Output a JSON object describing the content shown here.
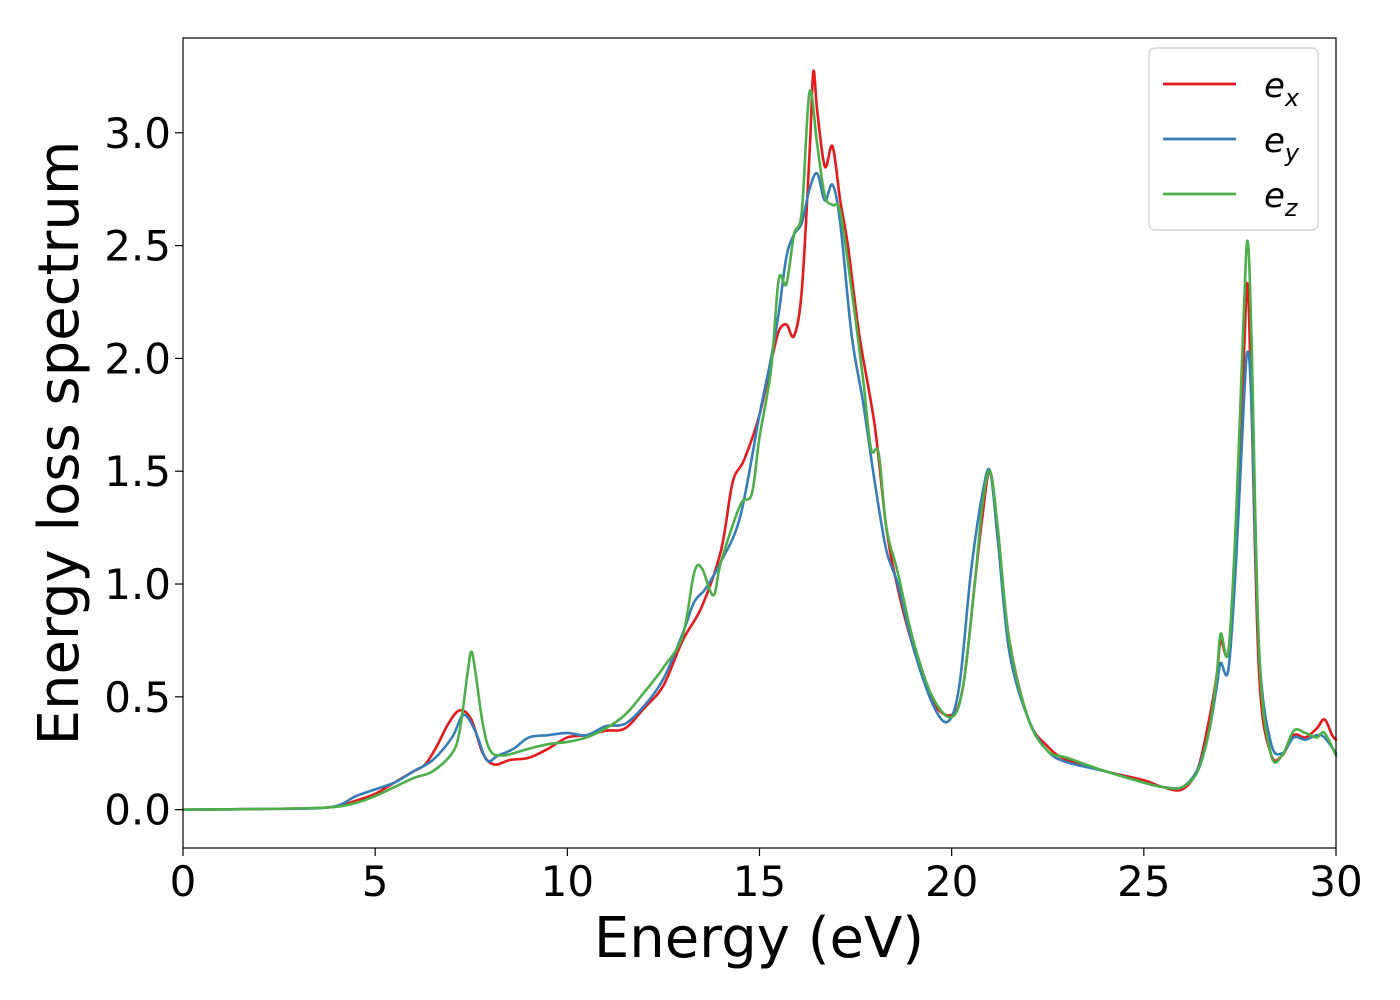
{
  "chart_data": {
    "type": "line",
    "title": "",
    "xlabel": "Energy (eV)",
    "ylabel": "Energy loss spectrum",
    "xlim": [
      0,
      30
    ],
    "ylim": [
      -0.17,
      3.42
    ],
    "xticks": [
      0,
      5,
      10,
      15,
      20,
      25,
      30
    ],
    "xtick_labels": [
      "0",
      "5",
      "10",
      "15",
      "20",
      "25",
      "30"
    ],
    "yticks": [
      0.0,
      0.5,
      1.0,
      1.5,
      2.0,
      2.5,
      3.0
    ],
    "ytick_labels": [
      "0.0",
      "0.5",
      "1.0",
      "1.5",
      "2.0",
      "2.5",
      "3.0"
    ],
    "grid": false,
    "legend_position": "top-right",
    "series": [
      {
        "name": "e_x",
        "legend_base": "e",
        "legend_sub": "x",
        "color": "#e41a1c",
        "x": [
          0,
          2,
          3.8,
          4.5,
          5.0,
          5.5,
          6.0,
          6.3,
          6.6,
          6.9,
          7.2,
          7.5,
          7.8,
          8.1,
          8.5,
          9.0,
          9.5,
          10.0,
          10.5,
          11.0,
          11.5,
          12.0,
          12.5,
          13.0,
          13.5,
          14.0,
          14.3,
          14.6,
          15.0,
          15.3,
          15.5,
          15.7,
          15.9,
          16.1,
          16.3,
          16.4,
          16.5,
          16.7,
          16.9,
          17.1,
          17.3,
          17.6,
          18.0,
          18.3,
          18.6,
          19.0,
          19.5,
          20.0,
          20.3,
          20.6,
          20.8,
          21.0,
          21.2,
          21.5,
          22.0,
          22.5,
          23.0,
          24.0,
          25.0,
          25.5,
          26.0,
          26.4,
          26.7,
          26.9,
          27.0,
          27.2,
          27.4,
          27.6,
          27.7,
          27.8,
          28.0,
          28.3,
          28.6,
          28.9,
          29.2,
          29.5,
          29.7,
          29.9,
          30.0
        ],
        "y": [
          0.0,
          0.003,
          0.01,
          0.04,
          0.07,
          0.12,
          0.17,
          0.2,
          0.28,
          0.38,
          0.44,
          0.4,
          0.25,
          0.2,
          0.22,
          0.23,
          0.27,
          0.32,
          0.33,
          0.35,
          0.36,
          0.45,
          0.55,
          0.75,
          0.9,
          1.15,
          1.45,
          1.55,
          1.75,
          1.98,
          2.12,
          2.15,
          2.1,
          2.3,
          2.9,
          3.27,
          3.1,
          2.85,
          2.94,
          2.7,
          2.5,
          2.1,
          1.7,
          1.25,
          0.98,
          0.72,
          0.48,
          0.42,
          0.55,
          1.0,
          1.3,
          1.5,
          1.2,
          0.75,
          0.4,
          0.28,
          0.22,
          0.17,
          0.13,
          0.1,
          0.09,
          0.18,
          0.4,
          0.6,
          0.75,
          0.7,
          1.2,
          2.0,
          2.33,
          1.8,
          0.6,
          0.25,
          0.24,
          0.33,
          0.32,
          0.36,
          0.4,
          0.33,
          0.31
        ]
      },
      {
        "name": "e_y",
        "legend_base": "e",
        "legend_sub": "y",
        "color": "#377eb8",
        "x": [
          0,
          2,
          3.8,
          4.5,
          5.0,
          5.5,
          6.0,
          6.5,
          7.0,
          7.3,
          7.6,
          7.9,
          8.2,
          8.6,
          9.0,
          9.5,
          10.0,
          10.5,
          11.0,
          11.5,
          12.0,
          12.5,
          13.0,
          13.3,
          13.6,
          14.0,
          14.5,
          15.0,
          15.3,
          15.5,
          15.7,
          15.9,
          16.1,
          16.3,
          16.5,
          16.7,
          16.9,
          17.1,
          17.4,
          17.7,
          18.0,
          18.3,
          18.6,
          19.0,
          19.5,
          19.9,
          20.2,
          20.5,
          20.8,
          21.0,
          21.2,
          21.5,
          22.0,
          22.5,
          23.0,
          24.0,
          25.0,
          25.5,
          26.0,
          26.4,
          26.7,
          26.9,
          27.0,
          27.2,
          27.4,
          27.6,
          27.7,
          27.8,
          28.0,
          28.3,
          28.6,
          28.9,
          29.2,
          29.5,
          29.7,
          30.0
        ],
        "y": [
          0.0,
          0.003,
          0.01,
          0.06,
          0.09,
          0.12,
          0.17,
          0.22,
          0.32,
          0.42,
          0.35,
          0.22,
          0.24,
          0.27,
          0.32,
          0.33,
          0.34,
          0.33,
          0.37,
          0.38,
          0.46,
          0.58,
          0.78,
          0.92,
          0.98,
          1.1,
          1.3,
          1.75,
          2.0,
          2.2,
          2.45,
          2.55,
          2.6,
          2.75,
          2.82,
          2.7,
          2.77,
          2.6,
          2.1,
          1.8,
          1.45,
          1.15,
          1.0,
          0.72,
          0.47,
          0.39,
          0.55,
          1.05,
          1.4,
          1.5,
          1.2,
          0.7,
          0.4,
          0.26,
          0.21,
          0.17,
          0.12,
          0.1,
          0.1,
          0.18,
          0.35,
          0.55,
          0.65,
          0.62,
          1.1,
          1.8,
          2.03,
          1.8,
          0.7,
          0.3,
          0.25,
          0.32,
          0.31,
          0.33,
          0.32,
          0.25
        ]
      },
      {
        "name": "e_z",
        "legend_base": "e",
        "legend_sub": "z",
        "color": "#4daf4a",
        "x": [
          0,
          2,
          3.8,
          4.5,
          5.0,
          5.5,
          6.0,
          6.5,
          7.0,
          7.2,
          7.4,
          7.5,
          7.6,
          7.8,
          8.0,
          8.3,
          8.6,
          9.0,
          9.5,
          10.0,
          10.5,
          11.0,
          11.5,
          12.0,
          12.5,
          13.0,
          13.3,
          13.5,
          13.8,
          14.0,
          14.5,
          14.8,
          15.0,
          15.3,
          15.5,
          15.7,
          15.9,
          16.1,
          16.3,
          16.5,
          16.7,
          16.9,
          17.1,
          17.4,
          17.7,
          17.9,
          18.1,
          18.3,
          18.6,
          19.0,
          19.5,
          20.0,
          20.3,
          20.6,
          20.8,
          21.0,
          21.2,
          21.5,
          22.0,
          22.5,
          23.0,
          24.0,
          25.0,
          25.5,
          26.0,
          26.4,
          26.7,
          26.9,
          27.0,
          27.2,
          27.4,
          27.6,
          27.7,
          27.8,
          28.0,
          28.3,
          28.6,
          28.9,
          29.2,
          29.5,
          29.7,
          30.0
        ],
        "y": [
          0.0,
          0.003,
          0.01,
          0.03,
          0.06,
          0.1,
          0.14,
          0.17,
          0.25,
          0.35,
          0.6,
          0.7,
          0.62,
          0.38,
          0.26,
          0.24,
          0.25,
          0.27,
          0.29,
          0.3,
          0.32,
          0.36,
          0.42,
          0.52,
          0.63,
          0.77,
          1.05,
          1.07,
          0.95,
          1.1,
          1.35,
          1.4,
          1.65,
          1.95,
          2.35,
          2.33,
          2.55,
          2.65,
          3.18,
          2.95,
          2.72,
          2.68,
          2.65,
          2.3,
          1.9,
          1.6,
          1.58,
          1.25,
          1.05,
          0.75,
          0.5,
          0.41,
          0.55,
          1.0,
          1.35,
          1.5,
          1.25,
          0.75,
          0.4,
          0.26,
          0.23,
          0.17,
          0.12,
          0.1,
          0.1,
          0.17,
          0.35,
          0.6,
          0.78,
          0.7,
          1.3,
          2.2,
          2.52,
          2.1,
          0.7,
          0.25,
          0.24,
          0.35,
          0.34,
          0.32,
          0.34,
          0.24
        ]
      }
    ]
  }
}
